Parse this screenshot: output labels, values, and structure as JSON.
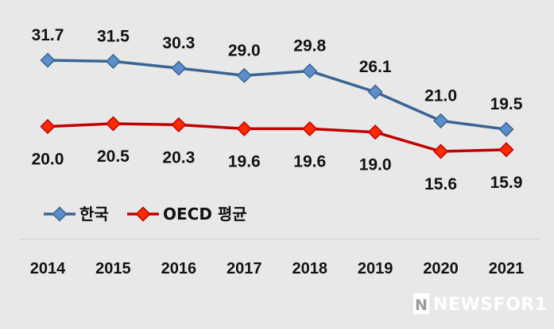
{
  "chart_data": {
    "type": "line",
    "x": [
      "2014",
      "2015",
      "2016",
      "2017",
      "2018",
      "2019",
      "2020",
      "2021"
    ],
    "series": [
      {
        "name": "한국",
        "values": [
          31.7,
          31.5,
          30.3,
          29.0,
          29.8,
          26.1,
          21.0,
          19.5
        ],
        "color": "#3a6491",
        "marker": "#5b8ecb",
        "label_position": "above"
      },
      {
        "name": "OECD 평균",
        "values": [
          20.0,
          20.5,
          20.3,
          19.6,
          19.6,
          19.0,
          15.6,
          15.9
        ],
        "color": "#c00000",
        "marker": "#ff2a00",
        "label_position": "below"
      }
    ],
    "legend_position": "bottom-left",
    "grid": false
  },
  "watermark": {
    "badge": "N",
    "text": "NEWSFOR1"
  }
}
